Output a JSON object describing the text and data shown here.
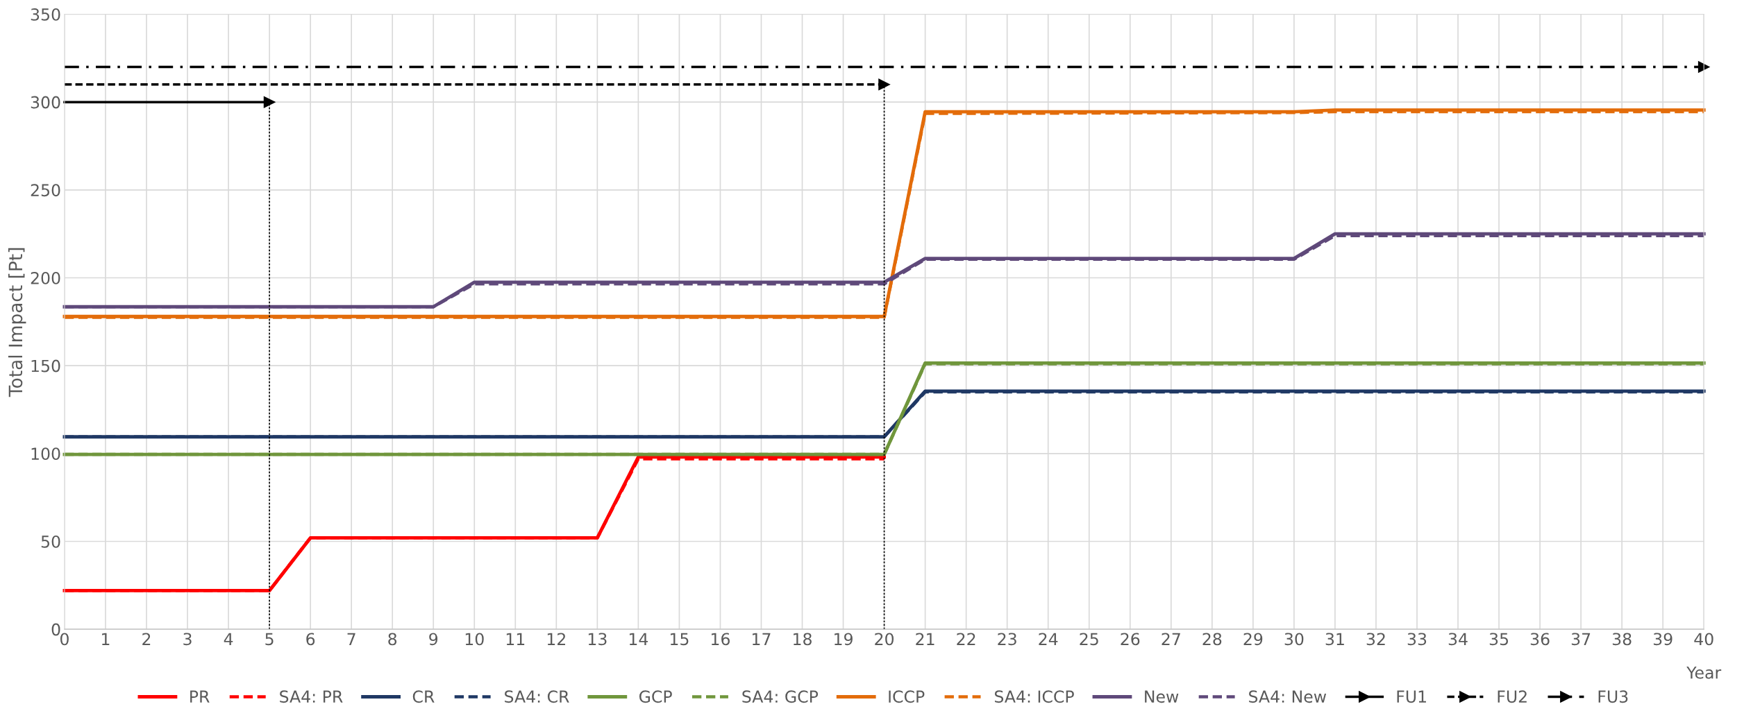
{
  "chart_data": {
    "type": "line",
    "ylabel": "Total Impact [Pt]",
    "xlabel": "Year",
    "xlim": [
      0,
      40
    ],
    "xticks": [
      0,
      1,
      2,
      3,
      4,
      5,
      6,
      7,
      8,
      9,
      10,
      11,
      12,
      13,
      14,
      15,
      16,
      17,
      18,
      19,
      20,
      21,
      22,
      23,
      24,
      25,
      26,
      27,
      28,
      29,
      30,
      31,
      32,
      33,
      34,
      35,
      36,
      37,
      38,
      39,
      40
    ],
    "ylim": [
      0,
      350
    ],
    "yticks": [
      0,
      50,
      100,
      150,
      200,
      250,
      300,
      350
    ],
    "grid": true,
    "legend": "bottom",
    "marker": "none",
    "series": [
      {
        "name": "PR",
        "color": "#ff0000",
        "line_style": "solid",
        "x": [
          0,
          5,
          6,
          13,
          14,
          20
        ],
        "values": [
          22,
          22,
          52,
          52,
          98,
          98
        ]
      },
      {
        "name": "SA4: PR",
        "color": "#ff0000",
        "line_style": "dashed",
        "x": [
          0,
          5,
          6,
          13,
          14,
          20
        ],
        "values": [
          22,
          22,
          52,
          52,
          97,
          97
        ]
      },
      {
        "name": "CR",
        "color": "#1f3864",
        "line_style": "solid",
        "x": [
          0,
          20,
          21,
          40
        ],
        "values": [
          109.5,
          109.5,
          135.5,
          135.5
        ]
      },
      {
        "name": "SA4: CR",
        "color": "#1f3864",
        "line_style": "dashed",
        "x": [
          0,
          20,
          21,
          40
        ],
        "values": [
          109.5,
          109.5,
          135,
          135
        ]
      },
      {
        "name": "GCP",
        "color": "#70963c",
        "line_style": "solid",
        "x": [
          0,
          20,
          21,
          40
        ],
        "values": [
          99.5,
          99.5,
          151.5,
          151.5
        ]
      },
      {
        "name": "SA4: GCP",
        "color": "#70963c",
        "line_style": "dashed",
        "x": [
          0,
          20,
          21,
          40
        ],
        "values": [
          99.5,
          99.5,
          151,
          151
        ]
      },
      {
        "name": "ICCP",
        "color": "#e36c0a",
        "line_style": "solid",
        "x": [
          0,
          20,
          21,
          30,
          31,
          40
        ],
        "values": [
          178,
          178,
          294.5,
          294.5,
          295.5,
          295.5
        ]
      },
      {
        "name": "SA4: ICCP",
        "color": "#e36c0a",
        "line_style": "dashed",
        "x": [
          0,
          20,
          21,
          30,
          31,
          40
        ],
        "values": [
          177.5,
          177.5,
          293.5,
          294,
          294.5,
          294.5
        ]
      },
      {
        "name": "New",
        "color": "#5f497a",
        "line_style": "solid",
        "x": [
          0,
          9,
          10,
          20,
          21,
          30,
          31,
          40
        ],
        "values": [
          183.5,
          183.5,
          197.5,
          197.5,
          211,
          211,
          225,
          225
        ]
      },
      {
        "name": "SA4: New",
        "color": "#5f497a",
        "line_style": "dashed",
        "x": [
          0,
          9,
          10,
          20,
          21,
          30,
          31,
          40
        ],
        "values": [
          183.5,
          183.5,
          196.5,
          196.5,
          210.5,
          210.5,
          224,
          224
        ]
      },
      {
        "name": "FU1",
        "color": "#000000",
        "line_style": "solid",
        "marker": "triangle",
        "x": [
          0,
          5
        ],
        "values": [
          300,
          300
        ]
      },
      {
        "name": "FU2",
        "color": "#000000",
        "line_style": "dashed",
        "marker": "triangle",
        "x": [
          0,
          20
        ],
        "values": [
          310,
          310
        ]
      },
      {
        "name": "FU3",
        "color": "#000000",
        "line_style": "dashdot",
        "marker": "triangle",
        "x": [
          0,
          40
        ],
        "values": [
          320,
          320
        ]
      },
      {
        "color": "#000000",
        "line_style": "dotted",
        "x": [
          5,
          5
        ],
        "values": [
          0,
          300
        ]
      },
      {
        "color": "#000000",
        "line_style": "dotted",
        "x": [
          20,
          20
        ],
        "values": [
          0,
          310
        ]
      }
    ]
  }
}
